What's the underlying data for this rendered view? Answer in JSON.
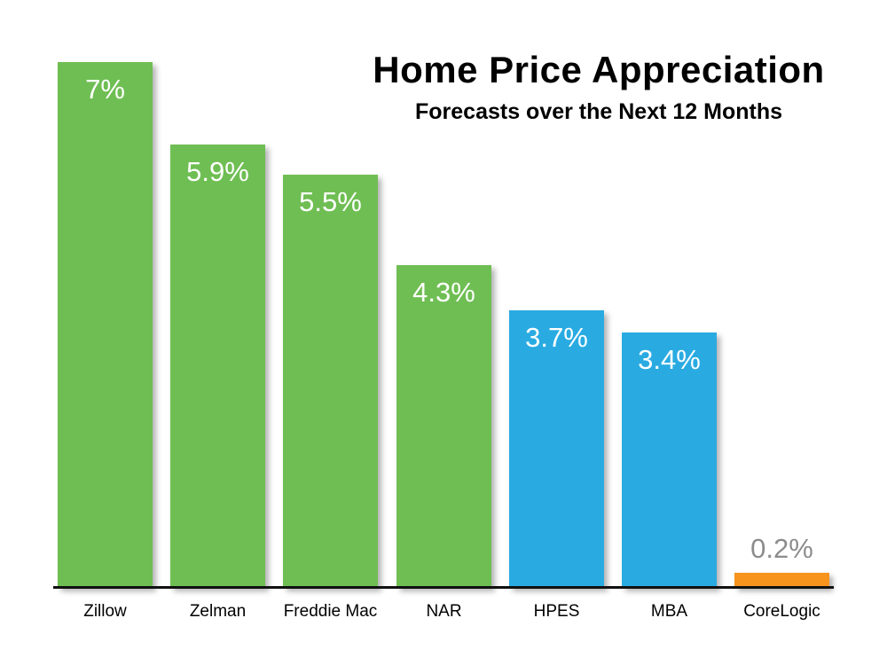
{
  "chart_data": {
    "type": "bar",
    "title": "Home Price Appreciation",
    "subtitle": "Forecasts over the Next 12 Months",
    "categories": [
      "Zillow",
      "Zelman",
      "Freddie Mac",
      "NAR",
      "HPES",
      "MBA",
      "CoreLogic"
    ],
    "values": [
      7.0,
      5.9,
      5.5,
      4.3,
      3.7,
      3.4,
      0.2
    ],
    "value_labels": [
      "7%",
      "5.9%",
      "5.5%",
      "4.3%",
      "3.7%",
      "3.4%",
      "0.2%"
    ],
    "bar_colors": [
      "#6FBE53",
      "#6FBE53",
      "#6FBE53",
      "#6FBE53",
      "#29ABE2",
      "#29ABE2",
      "#F7941E"
    ],
    "value_label_placement": [
      "inside",
      "inside",
      "inside",
      "inside",
      "inside",
      "inside",
      "outside"
    ],
    "value_label_color_inside": "#FFFFFF",
    "value_label_color_outside": "#8C8C8C",
    "axis_color": "#111111",
    "ylim": [
      0,
      7
    ],
    "grid": false,
    "legend": false
  }
}
